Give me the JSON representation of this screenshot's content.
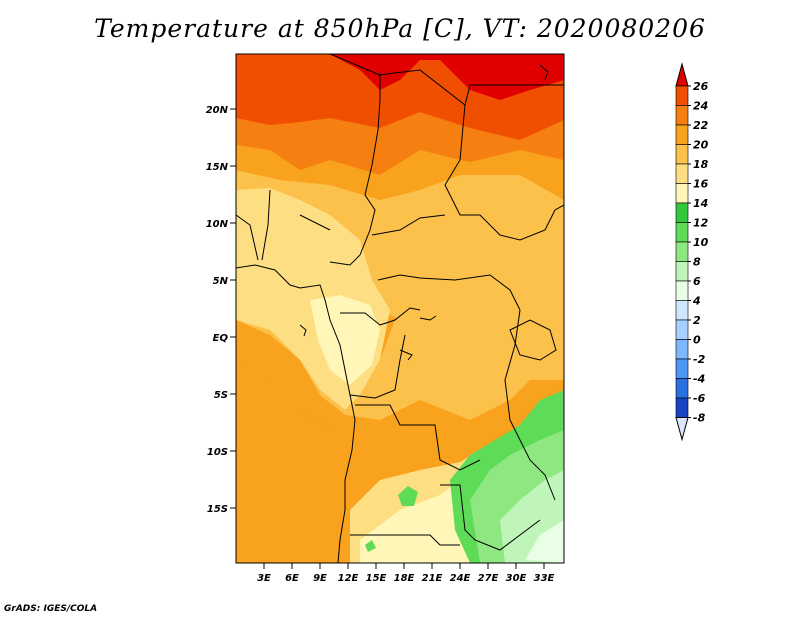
{
  "title": "Temperature at 850hPa [C], VT: 2020080206",
  "credit": "GrADS: IGES/COLA",
  "map": {
    "lon_range": [
      0,
      35
    ],
    "lat_range": [
      -20,
      25
    ],
    "y_ticks": [
      "20N",
      "15N",
      "10N",
      "5N",
      "EQ",
      "5S",
      "10S",
      "15S"
    ],
    "x_ticks": [
      "3E",
      "6E",
      "9E",
      "12E",
      "15E",
      "18E",
      "21E",
      "24E",
      "27E",
      "30E",
      "33E"
    ]
  },
  "colorbar": {
    "labels": [
      "26",
      "24",
      "22",
      "20",
      "18",
      "16",
      "14",
      "12",
      "10",
      "8",
      "6",
      "4",
      "2",
      "0",
      "-2",
      "-4",
      "-6",
      "-8"
    ],
    "colors": [
      "#e00000",
      "#f04e00",
      "#f57f10",
      "#f9a21d",
      "#fbc14a",
      "#fdde82",
      "#fff6b8",
      "#33c73d",
      "#5edc58",
      "#8ee780",
      "#bff5b9",
      "#e8ffe6",
      "#cfe6ff",
      "#a5d0ff",
      "#7db7ff",
      "#4e96f5",
      "#2a6fe0",
      "#1544c5",
      "#072a90",
      "#000066"
    ]
  }
}
